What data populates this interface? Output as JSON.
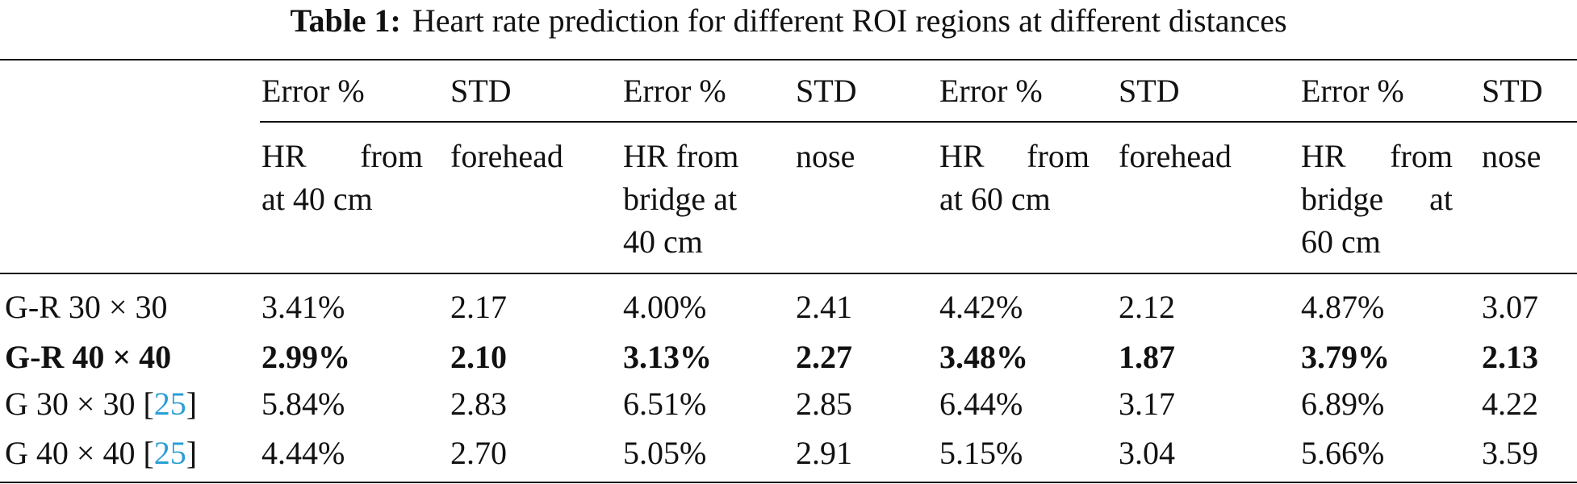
{
  "caption": {
    "label": "Table 1:",
    "text": "Heart rate prediction for different ROI regions at different distances"
  },
  "header1": [
    "Error %",
    "STD",
    "Error %",
    "STD",
    "Error %",
    "STD",
    "Error %",
    "STD"
  ],
  "header2": {
    "col1": [
      "HR",
      "from",
      "at 40 cm"
    ],
    "col2": "forehead",
    "col3": [
      "HR from",
      "bridge at",
      "40 cm"
    ],
    "col4": "nose",
    "col5": [
      "HR",
      "from",
      "at 60 cm"
    ],
    "col6": "forehead",
    "col7": [
      "HR",
      "from",
      "bridge",
      "at",
      "60 cm"
    ],
    "col8": "nose"
  },
  "rows": [
    {
      "label": "G-R 30 × 30",
      "cite": "",
      "values": [
        "3.41%",
        "2.17",
        "4.00%",
        "2.41",
        "4.42%",
        "2.12",
        "4.87%",
        "3.07"
      ]
    },
    {
      "label": "G-R 40 × 40",
      "cite": "",
      "bold": true,
      "values": [
        "2.99%",
        "2.10",
        "3.13%",
        "2.27",
        "3.48%",
        "1.87",
        "3.79%",
        "2.13"
      ]
    },
    {
      "label": "G 30 × 30 ",
      "cite": "25",
      "values": [
        "5.84%",
        "2.83",
        "6.51%",
        "2.85",
        "6.44%",
        "3.17",
        "6.89%",
        "4.22"
      ]
    },
    {
      "label": "G 40 × 40 ",
      "cite": "25",
      "values": [
        "4.44%",
        "2.70",
        "5.05%",
        "2.91",
        "5.15%",
        "3.04",
        "5.66%",
        "3.59"
      ]
    }
  ]
}
